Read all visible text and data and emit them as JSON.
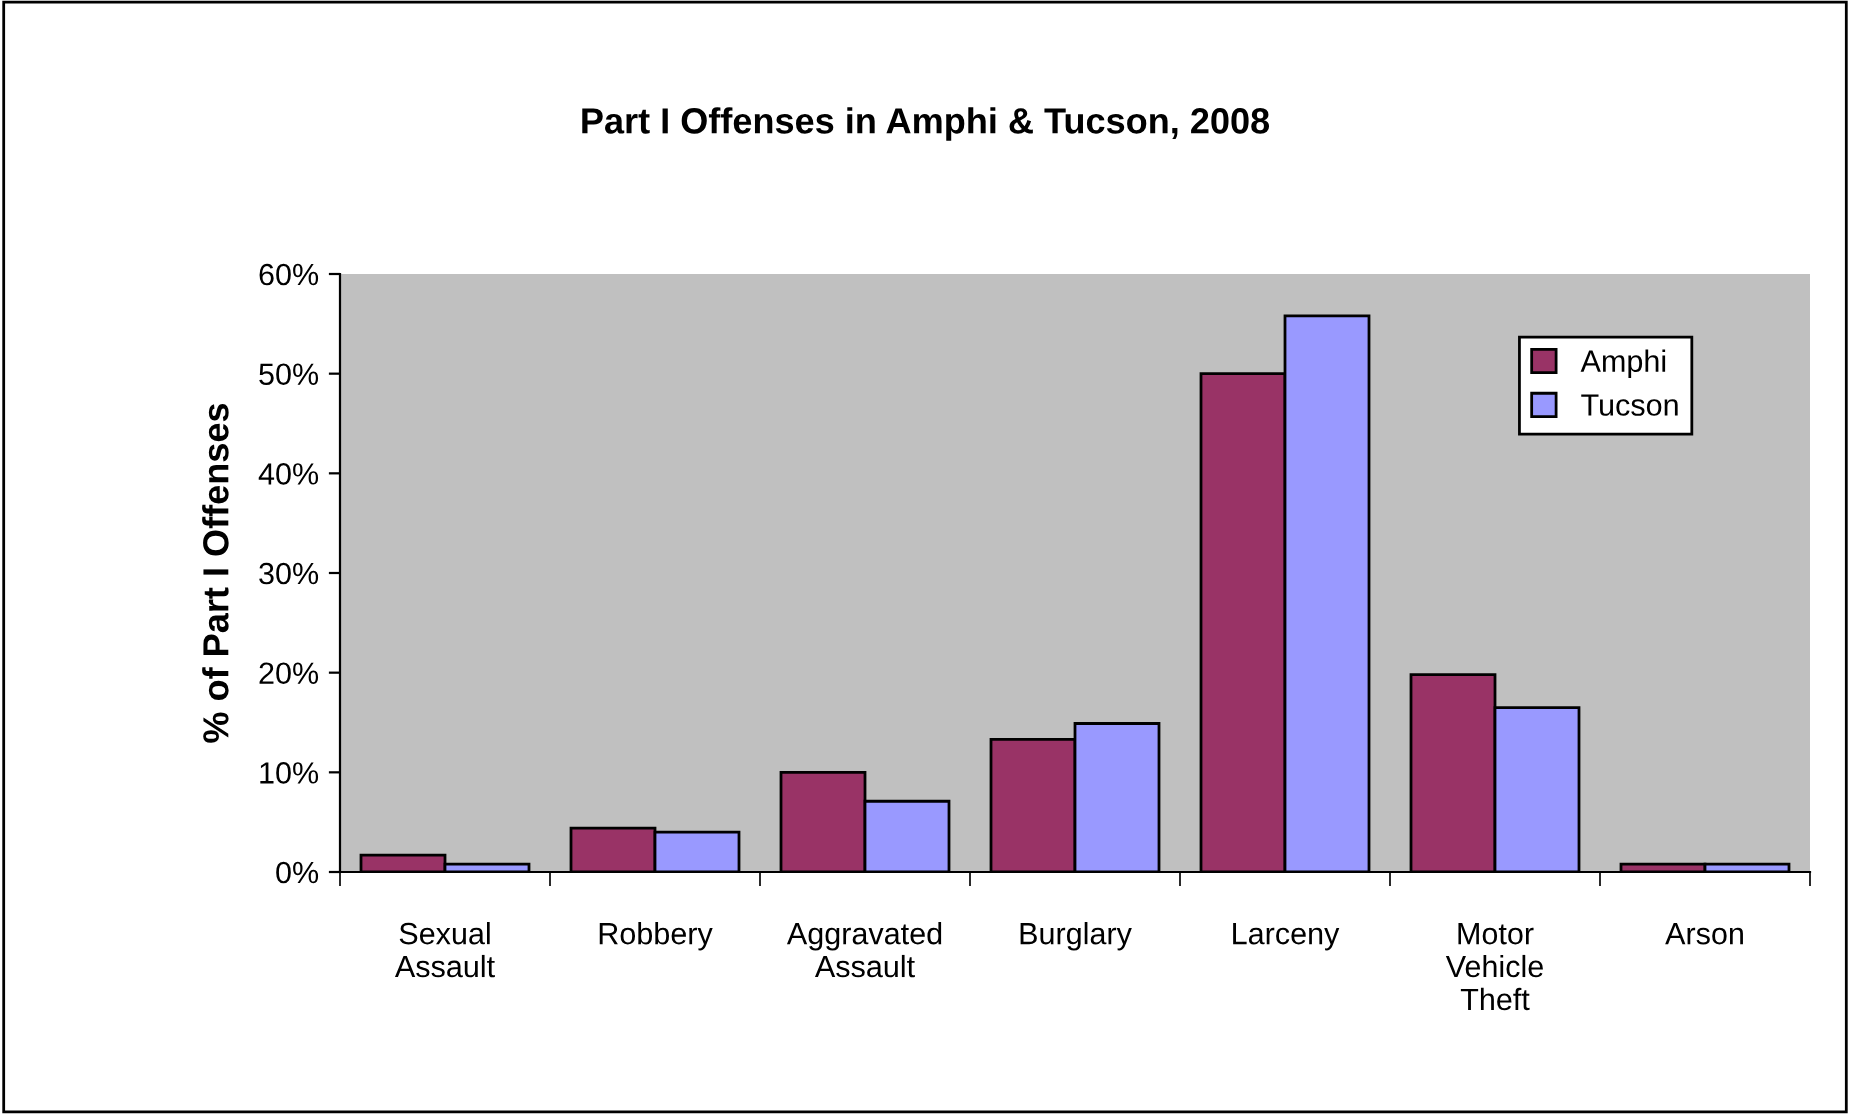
{
  "chart_data": {
    "type": "bar",
    "title": "Part I Offenses in Amphi & Tucson, 2008",
    "ylabel": "% of Part I Offenses",
    "categories": [
      "Sexual\nAssault",
      "Robbery",
      "Aggravated\nAssault",
      "Burglary",
      "Larceny",
      "Motor\nVehicle\nTheft",
      "Arson"
    ],
    "series": [
      {
        "name": "Amphi",
        "color": "#993366",
        "values": [
          1.7,
          4.4,
          10.0,
          13.3,
          50.0,
          19.8,
          0.8
        ]
      },
      {
        "name": "Tucson",
        "color": "#9999ff",
        "values": [
          0.8,
          4.0,
          7.1,
          14.9,
          55.8,
          16.5,
          0.8
        ]
      }
    ],
    "ylim": [
      0,
      60
    ],
    "yticks": [
      {
        "value": 0,
        "label": "0%"
      },
      {
        "value": 10,
        "label": "10%"
      },
      {
        "value": 20,
        "label": "20%"
      },
      {
        "value": 30,
        "label": "30%"
      },
      {
        "value": 40,
        "label": "40%"
      },
      {
        "value": 50,
        "label": "50%"
      },
      {
        "value": 60,
        "label": "60%"
      }
    ],
    "grid": false,
    "legend": "top right"
  }
}
